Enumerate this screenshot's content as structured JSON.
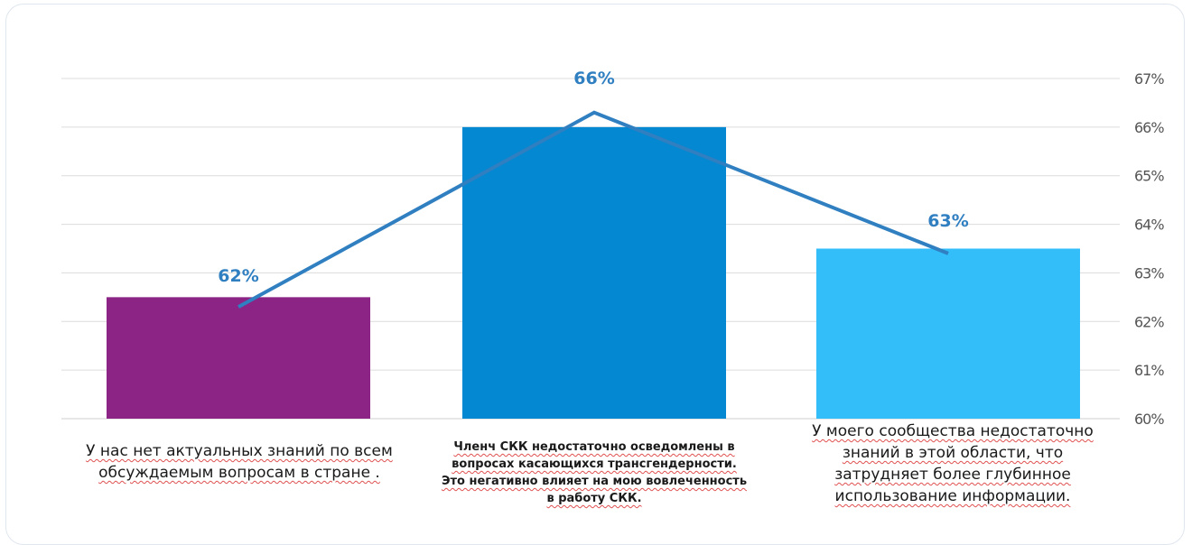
{
  "chart_data": {
    "type": "bar",
    "categories": [
      "У нас нет актуальных знаний по всем обсуждаемым  вопросам в стране .",
      "Членч СКК недостаточно осведомлены в вопросах касающихся трансгендерности. Это негативно влияет на мою вовлеченность в работу СКК.",
      "У моего сообщества недостаточно знаний в этой области, что затрудняет более глубинное использование информации."
    ],
    "values": [
      62.5,
      66.0,
      63.5
    ],
    "data_labels": [
      "62%",
      "66%",
      "63%"
    ],
    "line_values": [
      62.3,
      66.3,
      63.4
    ],
    "bar_colors": [
      "#8b2484",
      "#0388d1",
      "#33bdf9"
    ],
    "line_color": "#2f7fc1",
    "label_color": "#2f7fc1",
    "ylim": [
      60,
      67
    ],
    "yticks": [
      "60%",
      "61%",
      "62%",
      "63%",
      "64%",
      "65%",
      "66%",
      "67%"
    ],
    "y_axis_position": "right",
    "grid": true,
    "legend": "none"
  }
}
